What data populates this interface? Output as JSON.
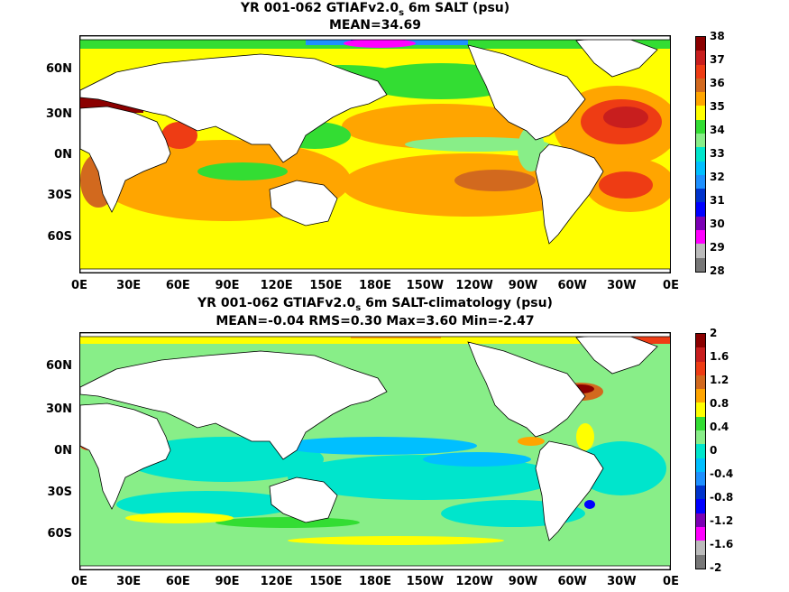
{
  "panels": [
    {
      "title_pre": "YR 001-062 GTIAFv2.0",
      "title_sub": "s",
      "title_post": " 6m SALT (psu)",
      "stats": "MEAN=34.69",
      "colorbar": {
        "labels": [
          "38",
          "37",
          "36",
          "35",
          "34",
          "33",
          "32",
          "31",
          "30",
          "29",
          "28"
        ],
        "colors": [
          "#8b0000",
          "#c81e1e",
          "#ee3c14",
          "#d2691e",
          "#ffa500",
          "#ffff00",
          "#33dd33",
          "#88ee88",
          "#00e5cc",
          "#00bfff",
          "#1e90ff",
          "#0033cc",
          "#0000ff",
          "#7b00b4",
          "#ff00ff",
          "#bbbbbb",
          "#777777"
        ]
      }
    },
    {
      "title_pre": "YR 001-062 GTIAFv2.0",
      "title_sub": "s",
      "title_post": " 6m SALT-climatology (psu)",
      "stats": "MEAN=-0.04   RMS=0.30   Max=3.60   Min=-2.47",
      "colorbar": {
        "labels": [
          "2",
          "1.6",
          "1.2",
          "0.8",
          "0.4",
          "0",
          "-0.4",
          "-0.8",
          "-1.2",
          "-1.6",
          "-2"
        ],
        "colors": [
          "#8b0000",
          "#c81e1e",
          "#ee3c14",
          "#d2691e",
          "#ffa500",
          "#ffff00",
          "#33dd33",
          "#88ee88",
          "#00e5cc",
          "#00bfff",
          "#1e90ff",
          "#0033cc",
          "#0000ff",
          "#7b00b4",
          "#ff00ff",
          "#bbbbbb",
          "#777777"
        ]
      }
    }
  ],
  "axes": {
    "lat_labels": [
      "60N",
      "30N",
      "0N",
      "30S",
      "60S"
    ],
    "lon_labels": [
      "0E",
      "30E",
      "60E",
      "90E",
      "120E",
      "150E",
      "180E",
      "150W",
      "120W",
      "90W",
      "60W",
      "30W",
      "0E"
    ]
  }
}
